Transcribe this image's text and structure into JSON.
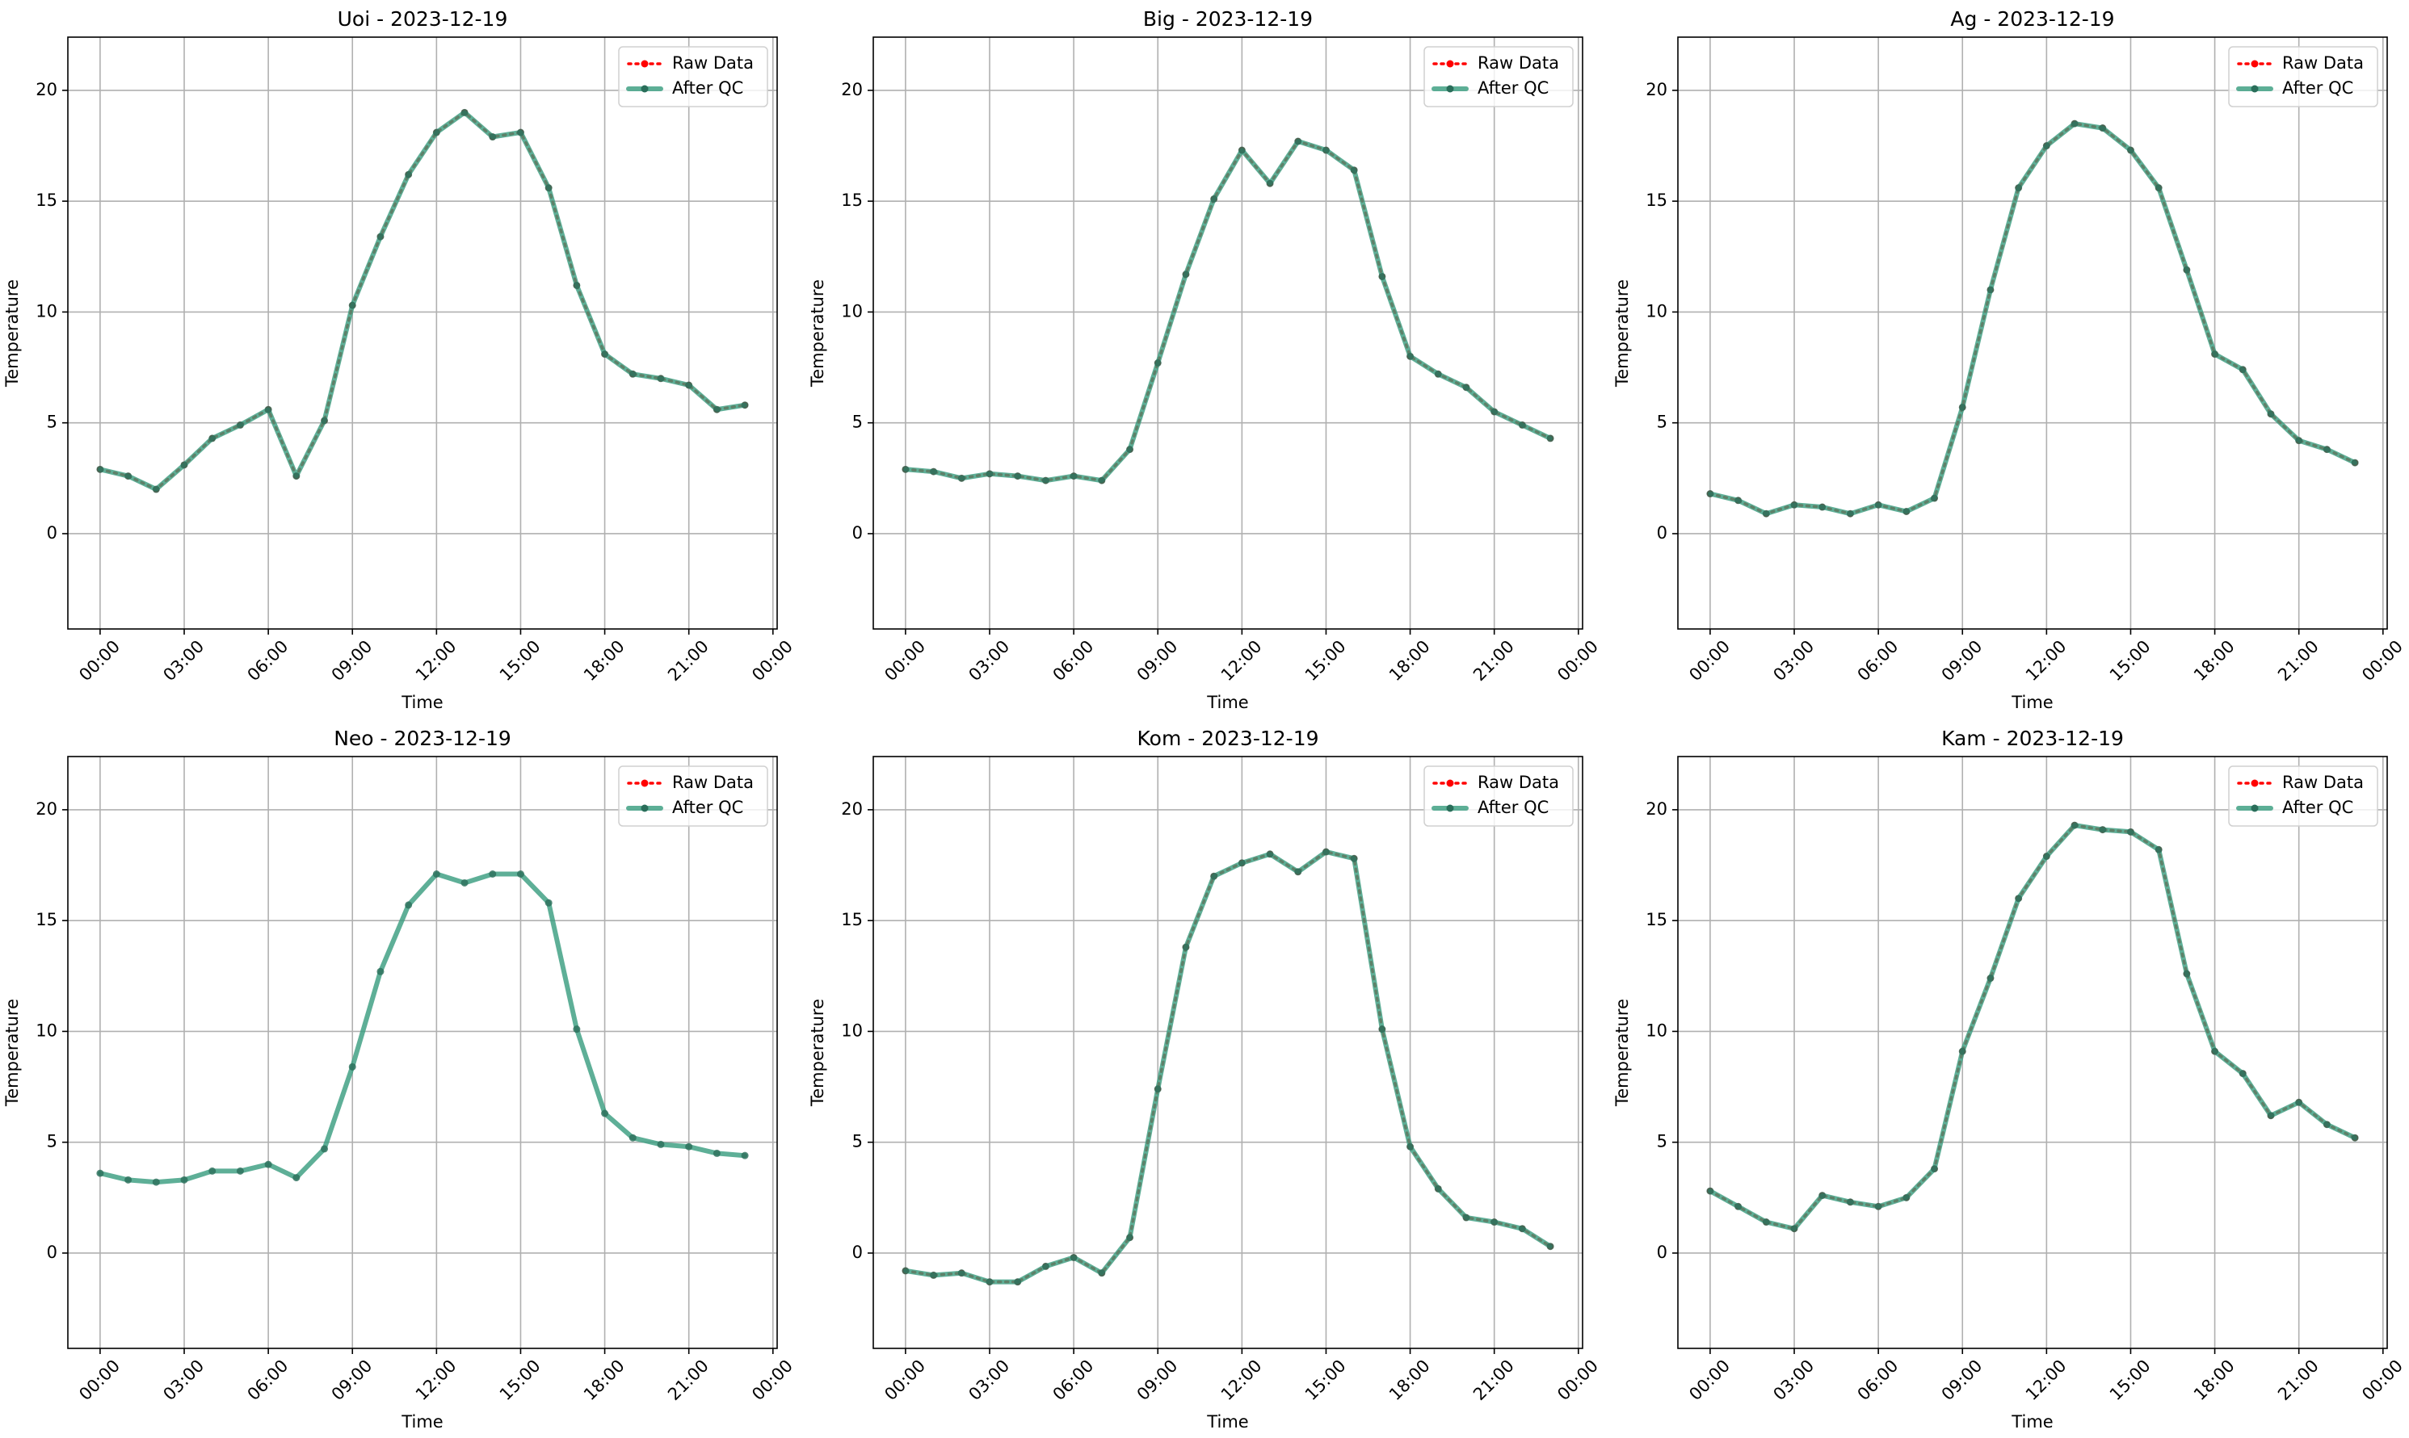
{
  "chart_data": [
    {
      "type": "line",
      "title": "Uoi - 2023-12-19",
      "xlabel": "Time",
      "ylabel": "Temperature",
      "x": [
        0,
        1,
        2,
        3,
        4,
        5,
        6,
        7,
        8,
        9,
        10,
        11,
        12,
        13,
        14,
        15,
        16,
        17,
        18,
        19,
        20,
        21,
        22,
        23
      ],
      "series": [
        {
          "name": "Raw Data",
          "color": "#ff0000",
          "style": "dotted",
          "values": [
            2.9,
            2.6,
            2.0,
            3.1,
            4.3,
            4.9,
            5.6,
            2.6,
            5.1,
            10.3,
            13.4,
            16.2,
            18.1,
            19.0,
            17.9,
            18.1,
            15.6,
            11.2,
            8.1,
            7.2,
            7.0,
            6.7,
            5.6,
            5.8
          ]
        },
        {
          "name": "After QC",
          "color": "#3a9e80",
          "style": "solid",
          "values": [
            2.9,
            2.6,
            2.0,
            3.1,
            4.3,
            4.9,
            5.6,
            2.6,
            5.1,
            10.3,
            13.4,
            16.2,
            18.1,
            19.0,
            17.9,
            18.1,
            15.6,
            11.2,
            8.1,
            7.2,
            7.0,
            6.7,
            5.6,
            5.8
          ]
        }
      ],
      "xlim": [
        -1.15,
        24.15
      ],
      "xticks": [
        {
          "value": 0,
          "label": "00:00"
        },
        {
          "value": 3,
          "label": "03:00"
        },
        {
          "value": 6,
          "label": "06:00"
        },
        {
          "value": 9,
          "label": "09:00"
        },
        {
          "value": 12,
          "label": "12:00"
        },
        {
          "value": 15,
          "label": "15:00"
        },
        {
          "value": 18,
          "label": "18:00"
        },
        {
          "value": 21,
          "label": "21:00"
        },
        {
          "value": 24,
          "label": "00:00"
        }
      ],
      "ylim": [
        -4.3,
        22.4
      ],
      "yticks": [
        0,
        5,
        10,
        15,
        20
      ],
      "grid": true,
      "legend": "upper right"
    },
    {
      "type": "line",
      "title": "Big - 2023-12-19",
      "xlabel": "Time",
      "ylabel": "Temperature",
      "x": [
        0,
        1,
        2,
        3,
        4,
        5,
        6,
        7,
        8,
        9,
        10,
        11,
        12,
        13,
        14,
        15,
        16,
        17,
        18,
        19,
        20,
        21,
        22,
        23
      ],
      "series": [
        {
          "name": "Raw Data",
          "color": "#ff0000",
          "style": "dotted",
          "values": [
            2.9,
            2.8,
            2.5,
            2.7,
            2.6,
            2.4,
            2.6,
            2.4,
            3.8,
            7.7,
            11.7,
            15.1,
            17.3,
            15.8,
            17.7,
            17.3,
            16.4,
            11.6,
            8.0,
            7.2,
            6.6,
            5.5,
            4.9,
            4.3
          ]
        },
        {
          "name": "After QC",
          "color": "#3a9e80",
          "style": "solid",
          "values": [
            2.9,
            2.8,
            2.5,
            2.7,
            2.6,
            2.4,
            2.6,
            2.4,
            3.8,
            7.7,
            11.7,
            15.1,
            17.3,
            15.8,
            17.7,
            17.3,
            16.4,
            11.6,
            8.0,
            7.2,
            6.6,
            5.5,
            4.9,
            4.3
          ]
        }
      ],
      "xlim": [
        -1.15,
        24.15
      ],
      "xticks": [
        {
          "value": 0,
          "label": "00:00"
        },
        {
          "value": 3,
          "label": "03:00"
        },
        {
          "value": 6,
          "label": "06:00"
        },
        {
          "value": 9,
          "label": "09:00"
        },
        {
          "value": 12,
          "label": "12:00"
        },
        {
          "value": 15,
          "label": "15:00"
        },
        {
          "value": 18,
          "label": "18:00"
        },
        {
          "value": 21,
          "label": "21:00"
        },
        {
          "value": 24,
          "label": "00:00"
        }
      ],
      "ylim": [
        -4.3,
        22.4
      ],
      "yticks": [
        0,
        5,
        10,
        15,
        20
      ],
      "grid": true,
      "legend": "upper right"
    },
    {
      "type": "line",
      "title": "Ag - 2023-12-19",
      "xlabel": "Time",
      "ylabel": "Temperature",
      "x": [
        0,
        1,
        2,
        3,
        4,
        5,
        6,
        7,
        8,
        9,
        10,
        11,
        12,
        13,
        14,
        15,
        16,
        17,
        18,
        19,
        20,
        21,
        22,
        23
      ],
      "series": [
        {
          "name": "Raw Data",
          "color": "#ff0000",
          "style": "dotted",
          "values": [
            1.8,
            1.5,
            0.9,
            1.3,
            1.2,
            0.9,
            1.3,
            1.0,
            1.6,
            5.7,
            11.0,
            15.6,
            17.5,
            18.5,
            18.3,
            17.3,
            15.6,
            11.9,
            8.1,
            7.4,
            5.4,
            4.2,
            3.8,
            3.2
          ]
        },
        {
          "name": "After QC",
          "color": "#3a9e80",
          "style": "solid",
          "values": [
            1.8,
            1.5,
            0.9,
            1.3,
            1.2,
            0.9,
            1.3,
            1.0,
            1.6,
            5.7,
            11.0,
            15.6,
            17.5,
            18.5,
            18.3,
            17.3,
            15.6,
            11.9,
            8.1,
            7.4,
            5.4,
            4.2,
            3.8,
            3.2
          ]
        }
      ],
      "xlim": [
        -1.15,
        24.15
      ],
      "xticks": [
        {
          "value": 0,
          "label": "00:00"
        },
        {
          "value": 3,
          "label": "03:00"
        },
        {
          "value": 6,
          "label": "06:00"
        },
        {
          "value": 9,
          "label": "09:00"
        },
        {
          "value": 12,
          "label": "12:00"
        },
        {
          "value": 15,
          "label": "15:00"
        },
        {
          "value": 18,
          "label": "18:00"
        },
        {
          "value": 21,
          "label": "21:00"
        },
        {
          "value": 24,
          "label": "00:00"
        }
      ],
      "ylim": [
        -4.3,
        22.4
      ],
      "yticks": [
        0,
        5,
        10,
        15,
        20
      ],
      "grid": true,
      "legend": "upper right"
    },
    {
      "type": "line",
      "title": "Neo - 2023-12-19",
      "xlabel": "Time",
      "ylabel": "Temperature",
      "x": [
        0,
        1,
        2,
        3,
        4,
        5,
        6,
        7,
        8,
        9,
        10,
        11,
        12,
        13,
        14,
        15,
        16,
        17,
        18,
        19,
        20,
        21,
        22,
        23
      ],
      "series": [
        {
          "name": "Raw Data",
          "color": "#ff0000",
          "style": "dotted",
          "values": [
            null,
            null,
            null,
            null,
            null,
            null,
            null,
            null,
            null,
            null,
            null,
            null,
            null,
            null,
            null,
            null,
            null,
            null,
            null,
            null,
            null,
            null,
            null,
            null
          ]
        },
        {
          "name": "After QC",
          "color": "#3a9e80",
          "style": "solid",
          "values": [
            3.6,
            3.3,
            3.2,
            3.3,
            3.7,
            3.7,
            4.0,
            3.4,
            4.7,
            8.4,
            12.7,
            15.7,
            17.1,
            16.7,
            17.1,
            17.1,
            15.8,
            10.1,
            6.3,
            5.2,
            4.9,
            4.8,
            4.5,
            4.4
          ]
        }
      ],
      "xlim": [
        -1.15,
        24.15
      ],
      "xticks": [
        {
          "value": 0,
          "label": "00:00"
        },
        {
          "value": 3,
          "label": "03:00"
        },
        {
          "value": 6,
          "label": "06:00"
        },
        {
          "value": 9,
          "label": "09:00"
        },
        {
          "value": 12,
          "label": "12:00"
        },
        {
          "value": 15,
          "label": "15:00"
        },
        {
          "value": 18,
          "label": "18:00"
        },
        {
          "value": 21,
          "label": "21:00"
        },
        {
          "value": 24,
          "label": "00:00"
        }
      ],
      "ylim": [
        -4.3,
        22.4
      ],
      "yticks": [
        0,
        5,
        10,
        15,
        20
      ],
      "grid": true,
      "legend": "upper right"
    },
    {
      "type": "line",
      "title": "Kom - 2023-12-19",
      "xlabel": "Time",
      "ylabel": "Temperature",
      "x": [
        0,
        1,
        2,
        3,
        4,
        5,
        6,
        7,
        8,
        9,
        10,
        11,
        12,
        13,
        14,
        15,
        16,
        17,
        18,
        19,
        20,
        21,
        22,
        23
      ],
      "series": [
        {
          "name": "Raw Data",
          "color": "#ff0000",
          "style": "dotted",
          "values": [
            -0.8,
            -1.0,
            -0.9,
            -1.3,
            -1.3,
            -0.6,
            -0.2,
            -0.9,
            0.7,
            7.4,
            13.8,
            17.0,
            17.6,
            18.0,
            17.2,
            18.1,
            17.8,
            10.1,
            4.8,
            2.9,
            1.6,
            1.4,
            1.1,
            0.3
          ]
        },
        {
          "name": "After QC",
          "color": "#3a9e80",
          "style": "solid",
          "values": [
            -0.8,
            -1.0,
            -0.9,
            -1.3,
            -1.3,
            -0.6,
            -0.2,
            -0.9,
            0.7,
            7.4,
            13.8,
            17.0,
            17.6,
            18.0,
            17.2,
            18.1,
            17.8,
            10.1,
            4.8,
            2.9,
            1.6,
            1.4,
            1.1,
            0.3
          ]
        }
      ],
      "xlim": [
        -1.15,
        24.15
      ],
      "xticks": [
        {
          "value": 0,
          "label": "00:00"
        },
        {
          "value": 3,
          "label": "03:00"
        },
        {
          "value": 6,
          "label": "06:00"
        },
        {
          "value": 9,
          "label": "09:00"
        },
        {
          "value": 12,
          "label": "12:00"
        },
        {
          "value": 15,
          "label": "15:00"
        },
        {
          "value": 18,
          "label": "18:00"
        },
        {
          "value": 21,
          "label": "21:00"
        },
        {
          "value": 24,
          "label": "00:00"
        }
      ],
      "ylim": [
        -4.3,
        22.4
      ],
      "yticks": [
        0,
        5,
        10,
        15,
        20
      ],
      "grid": true,
      "legend": "upper right"
    },
    {
      "type": "line",
      "title": "Kam - 2023-12-19",
      "xlabel": "Time",
      "ylabel": "Temperature",
      "x": [
        0,
        1,
        2,
        3,
        4,
        5,
        6,
        7,
        8,
        9,
        10,
        11,
        12,
        13,
        14,
        15,
        16,
        17,
        18,
        19,
        20,
        21,
        22,
        23
      ],
      "series": [
        {
          "name": "Raw Data",
          "color": "#ff0000",
          "style": "dotted",
          "values": [
            2.8,
            2.1,
            1.4,
            1.1,
            2.6,
            2.3,
            2.1,
            2.5,
            3.8,
            9.1,
            12.4,
            16.0,
            17.9,
            19.3,
            19.1,
            19.0,
            18.2,
            12.6,
            9.1,
            8.1,
            6.2,
            6.8,
            5.8,
            5.2
          ]
        },
        {
          "name": "After QC",
          "color": "#3a9e80",
          "style": "solid",
          "values": [
            2.8,
            2.1,
            1.4,
            1.1,
            2.6,
            2.3,
            2.1,
            2.5,
            3.8,
            9.1,
            12.4,
            16.0,
            17.9,
            19.3,
            19.1,
            19.0,
            18.2,
            12.6,
            9.1,
            8.1,
            6.2,
            6.8,
            5.8,
            5.2
          ]
        }
      ],
      "xlim": [
        -1.15,
        24.15
      ],
      "xticks": [
        {
          "value": 0,
          "label": "00:00"
        },
        {
          "value": 3,
          "label": "03:00"
        },
        {
          "value": 6,
          "label": "06:00"
        },
        {
          "value": 9,
          "label": "09:00"
        },
        {
          "value": 12,
          "label": "12:00"
        },
        {
          "value": 15,
          "label": "15:00"
        },
        {
          "value": 18,
          "label": "18:00"
        },
        {
          "value": 21,
          "label": "21:00"
        },
        {
          "value": 24,
          "label": "00:00"
        }
      ],
      "ylim": [
        -4.3,
        22.4
      ],
      "yticks": [
        0,
        5,
        10,
        15,
        20
      ],
      "grid": true,
      "legend": "upper right"
    }
  ]
}
